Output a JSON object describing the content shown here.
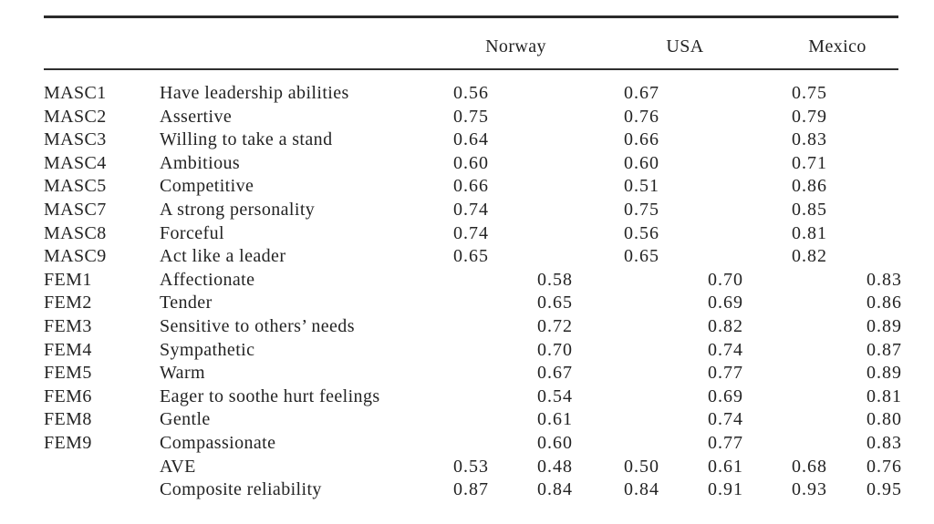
{
  "colors": {
    "background": "#ffffff",
    "text": "#232323",
    "rule": "#2b2b2b"
  },
  "table": {
    "column_groups": [
      {
        "label": "Norway"
      },
      {
        "label": "USA"
      },
      {
        "label": "Mexico"
      }
    ],
    "rows": [
      {
        "code": "MASC1",
        "item": "Have leadership abilities",
        "values": [
          "0.56",
          "",
          "0.67",
          "",
          "0.75",
          ""
        ]
      },
      {
        "code": "MASC2",
        "item": "Assertive",
        "values": [
          "0.75",
          "",
          "0.76",
          "",
          "0.79",
          ""
        ]
      },
      {
        "code": "MASC3",
        "item": "Willing to take a stand",
        "values": [
          "0.64",
          "",
          "0.66",
          "",
          "0.83",
          ""
        ]
      },
      {
        "code": "MASC4",
        "item": "Ambitious",
        "values": [
          "0.60",
          "",
          "0.60",
          "",
          "0.71",
          ""
        ]
      },
      {
        "code": "MASC5",
        "item": "Competitive",
        "values": [
          "0.66",
          "",
          "0.51",
          "",
          "0.86",
          ""
        ]
      },
      {
        "code": "MASC7",
        "item": "A strong personality",
        "values": [
          "0.74",
          "",
          "0.75",
          "",
          "0.85",
          ""
        ]
      },
      {
        "code": "MASC8",
        "item": "Forceful",
        "values": [
          "0.74",
          "",
          "0.56",
          "",
          "0.81",
          ""
        ]
      },
      {
        "code": "MASC9",
        "item": "Act like a leader",
        "values": [
          "0.65",
          "",
          "0.65",
          "",
          "0.82",
          ""
        ]
      },
      {
        "code": "FEM1",
        "item": "Affectionate",
        "values": [
          "",
          "0.58",
          "",
          "0.70",
          "",
          "0.83"
        ]
      },
      {
        "code": "FEM2",
        "item": "Tender",
        "values": [
          "",
          "0.65",
          "",
          "0.69",
          "",
          "0.86"
        ]
      },
      {
        "code": "FEM3",
        "item": "Sensitive to others’ needs",
        "values": [
          "",
          "0.72",
          "",
          "0.82",
          "",
          "0.89"
        ]
      },
      {
        "code": "FEM4",
        "item": "Sympathetic",
        "values": [
          "",
          "0.70",
          "",
          "0.74",
          "",
          "0.87"
        ]
      },
      {
        "code": "FEM5",
        "item": "Warm",
        "values": [
          "",
          "0.67",
          "",
          "0.77",
          "",
          "0.89"
        ]
      },
      {
        "code": "FEM6",
        "item": "Eager to soothe hurt feelings",
        "values": [
          "",
          "0.54",
          "",
          "0.69",
          "",
          "0.81"
        ]
      },
      {
        "code": "FEM8",
        "item": "Gentle",
        "values": [
          "",
          "0.61",
          "",
          "0.74",
          "",
          "0.80"
        ]
      },
      {
        "code": "FEM9",
        "item": "Compassionate",
        "values": [
          "",
          "0.60",
          "",
          "0.77",
          "",
          "0.83"
        ]
      },
      {
        "code": "",
        "item": "AVE",
        "values": [
          "0.53",
          "0.48",
          "0.50",
          "0.61",
          "0.68",
          "0.76"
        ]
      },
      {
        "code": "",
        "item": "Composite reliability",
        "values": [
          "0.87",
          "0.84",
          "0.84",
          "0.91",
          "0.93",
          "0.95"
        ]
      }
    ]
  }
}
